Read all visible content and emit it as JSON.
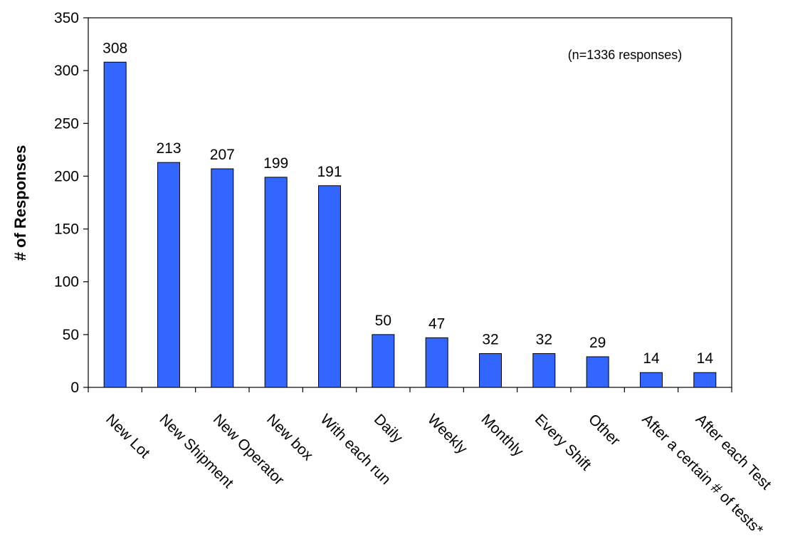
{
  "chart_data": {
    "type": "bar",
    "categories": [
      "New Lot",
      "New Shipment",
      "New Operator",
      "New box",
      "With each run",
      "Daily",
      "Weekly",
      "Monthly",
      "Every Shift",
      "Other",
      "After a certain # of tests*",
      "After each Test"
    ],
    "values": [
      308,
      213,
      207,
      199,
      191,
      50,
      47,
      32,
      32,
      29,
      14,
      14
    ],
    "title": "",
    "xlabel": "",
    "ylabel": "# of Responses",
    "ylim": [
      0,
      350
    ],
    "yticks": [
      0,
      50,
      100,
      150,
      200,
      250,
      300,
      350
    ],
    "annotation": "(n=1336 responses)",
    "grid": false,
    "legend": "none",
    "bar_color": "#3366ff"
  }
}
